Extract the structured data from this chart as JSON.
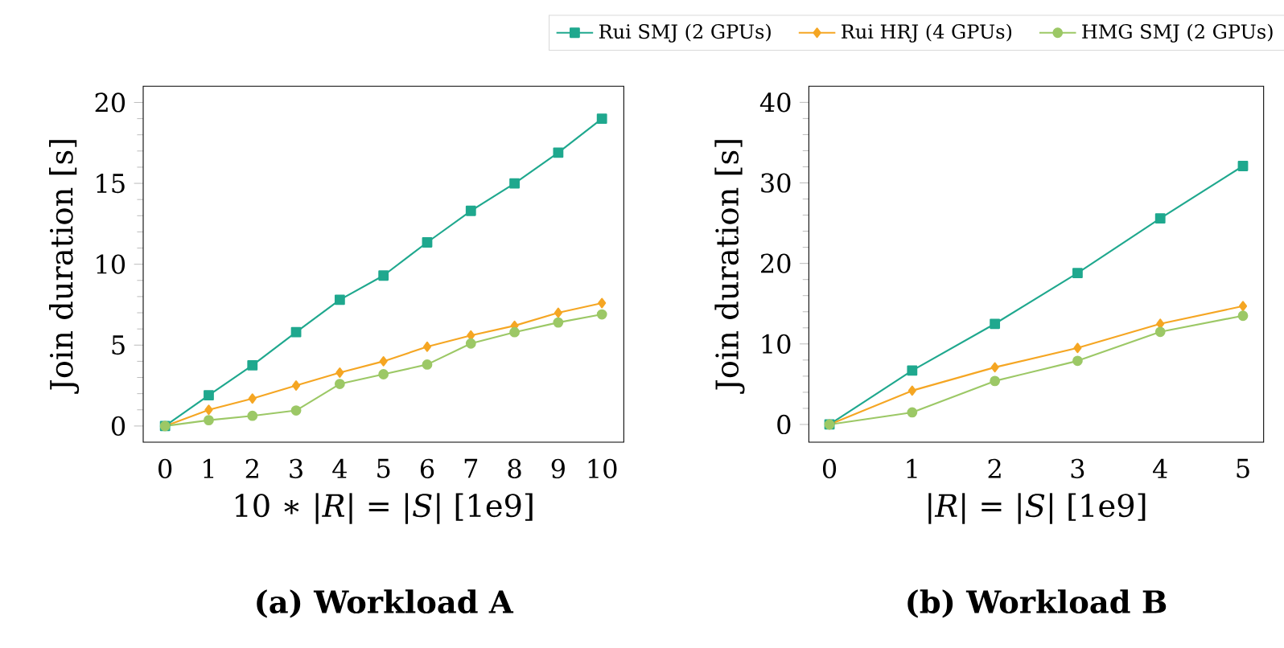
{
  "chart_data": [
    {
      "type": "line",
      "title": "(a) Workload A",
      "xlabel": "10 ∗ |*R*| = |*S*| [1e9]",
      "ylabel": "Join duration [s]",
      "x": [
        0,
        1,
        2,
        3,
        4,
        5,
        6,
        7,
        8,
        9,
        10
      ],
      "xlim": [
        -0.5,
        10.5
      ],
      "ylim": [
        -1,
        21
      ],
      "xticks": [
        0,
        1,
        2,
        3,
        4,
        5,
        6,
        7,
        8,
        9,
        10
      ],
      "yticks": [
        0,
        5,
        10,
        15,
        20
      ],
      "legend": "top",
      "series": [
        {
          "name": "Rui SMJ (2 GPUs)",
          "color": "#1fa88e",
          "marker": "square",
          "values": [
            0,
            1.9,
            3.75,
            5.8,
            7.8,
            9.3,
            11.35,
            13.3,
            15.0,
            16.9,
            19.0
          ]
        },
        {
          "name": "Rui HRJ (4 GPUs)",
          "color": "#f5a623",
          "marker": "diamond",
          "values": [
            0,
            1.0,
            1.7,
            2.5,
            3.3,
            4.0,
            4.9,
            5.6,
            6.2,
            7.0,
            7.6
          ]
        },
        {
          "name": "HMG SMJ (2 GPUs)",
          "color": "#9cc866",
          "marker": "circle",
          "values": [
            0,
            0.36,
            0.63,
            0.96,
            2.6,
            3.2,
            3.8,
            5.1,
            5.8,
            6.4,
            6.9
          ]
        }
      ]
    },
    {
      "type": "line",
      "title": "(b) Workload B",
      "xlabel": "|*R*| = |*S*| [1e9]",
      "ylabel": "Join duration [s]",
      "x": [
        0,
        1,
        2,
        3,
        4,
        5
      ],
      "xlim": [
        -0.25,
        5.25
      ],
      "ylim": [
        -2.2,
        42
      ],
      "xticks": [
        0,
        1,
        2,
        3,
        4,
        5
      ],
      "yticks": [
        0,
        10,
        20,
        30,
        40
      ],
      "series": [
        {
          "color": "#1fa88e",
          "marker": "square",
          "values": [
            0,
            6.7,
            12.5,
            18.8,
            25.6,
            32.1
          ]
        },
        {
          "color": "#f5a623",
          "marker": "diamond",
          "values": [
            0,
            4.2,
            7.1,
            9.5,
            12.5,
            14.7
          ]
        },
        {
          "color": "#9cc866",
          "marker": "circle",
          "values": [
            0,
            1.5,
            5.4,
            7.9,
            11.5,
            13.5
          ]
        }
      ]
    }
  ]
}
